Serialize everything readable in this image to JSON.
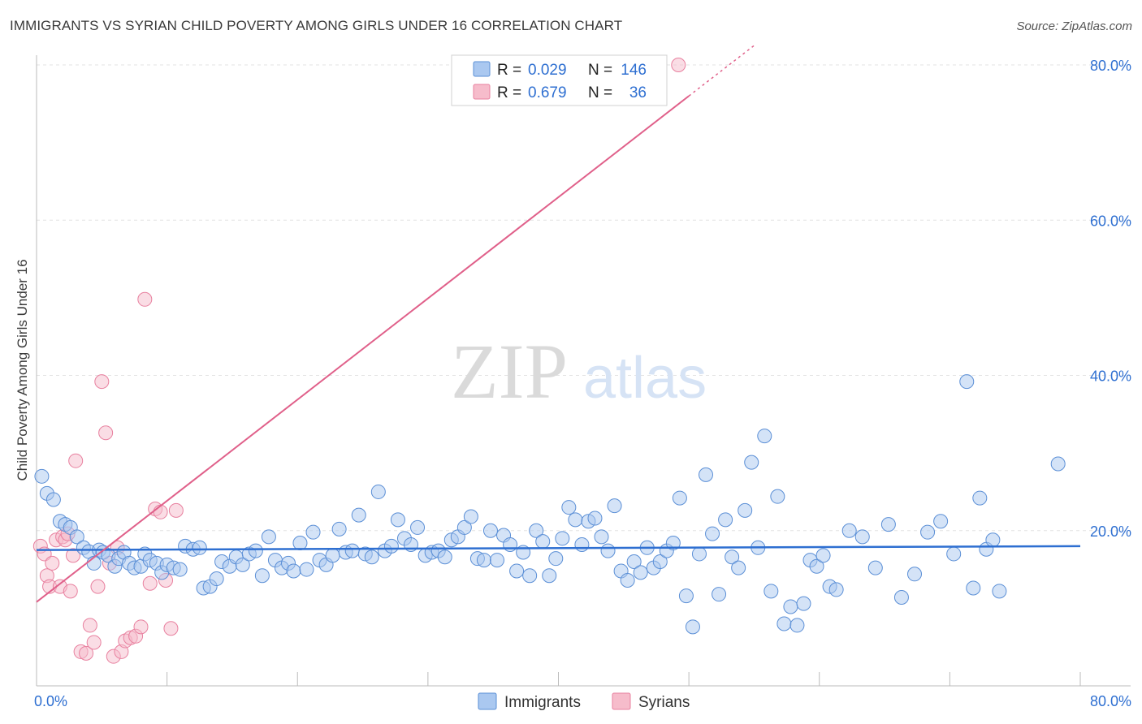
{
  "header": {
    "title": "IMMIGRANTS VS SYRIAN CHILD POVERTY AMONG GIRLS UNDER 16 CORRELATION CHART",
    "source": "Source: ZipAtlas.com"
  },
  "watermark": {
    "zip": "ZIP",
    "atlas": "atlas"
  },
  "legend_box": {
    "rows": [
      {
        "r_label": "R =",
        "r_value": "0.029",
        "n_label": "N =",
        "n_value": "146"
      },
      {
        "r_label": "R =",
        "r_value": "0.679",
        "n_label": "N =",
        "n_value": "36"
      }
    ]
  },
  "colors": {
    "immigrants_fill": "#aac8f0",
    "immigrants_stroke": "#5b8fd6",
    "immigrants_line": "#2e6fd1",
    "syrians_fill": "#f6bccb",
    "syrians_stroke": "#e8809f",
    "syrians_line": "#e0608a",
    "tick_label": "#2e6fd1",
    "grid": "#e3e3e3"
  },
  "chart_data": {
    "type": "scatter",
    "title": "IMMIGRANTS VS SYRIAN CHILD POVERTY AMONG GIRLS UNDER 16 CORRELATION CHART",
    "ylabel": "Child Poverty Among Girls Under 16",
    "xlabel": "",
    "xlim": [
      0,
      80
    ],
    "ylim": [
      0,
      80
    ],
    "x_tick_labels": [
      "0.0%",
      "80.0%"
    ],
    "y_tick_labels": [
      "20.0%",
      "40.0%",
      "60.0%",
      "80.0%"
    ],
    "y_ticks": [
      20,
      40,
      60,
      80
    ],
    "legend_position": "bottom-center",
    "grid": true,
    "series": [
      {
        "name": "Immigrants",
        "R": 0.029,
        "N": 146,
        "trend": {
          "x": [
            0,
            80
          ],
          "y": [
            17.5,
            18.0
          ]
        },
        "points": [
          [
            0.4,
            27.0
          ],
          [
            0.8,
            24.8
          ],
          [
            1.3,
            24.0
          ],
          [
            1.8,
            21.2
          ],
          [
            2.2,
            20.8
          ],
          [
            2.6,
            20.4
          ],
          [
            3.1,
            19.2
          ],
          [
            3.6,
            17.8
          ],
          [
            4.0,
            17.3
          ],
          [
            4.4,
            15.8
          ],
          [
            4.8,
            17.5
          ],
          [
            5.1,
            17.2
          ],
          [
            5.5,
            16.8
          ],
          [
            6.0,
            15.4
          ],
          [
            6.3,
            16.4
          ],
          [
            6.7,
            17.2
          ],
          [
            7.1,
            15.8
          ],
          [
            7.5,
            15.2
          ],
          [
            8.0,
            15.4
          ],
          [
            8.3,
            17.0
          ],
          [
            8.7,
            16.2
          ],
          [
            9.2,
            15.8
          ],
          [
            9.6,
            14.6
          ],
          [
            10.0,
            15.6
          ],
          [
            10.5,
            15.2
          ],
          [
            11.0,
            15.0
          ],
          [
            11.4,
            18.0
          ],
          [
            12.0,
            17.6
          ],
          [
            12.5,
            17.8
          ],
          [
            12.8,
            12.6
          ],
          [
            13.3,
            12.8
          ],
          [
            13.8,
            13.8
          ],
          [
            14.2,
            16.0
          ],
          [
            14.8,
            15.4
          ],
          [
            15.3,
            16.6
          ],
          [
            15.8,
            15.6
          ],
          [
            16.3,
            17.0
          ],
          [
            16.8,
            17.4
          ],
          [
            17.3,
            14.2
          ],
          [
            17.8,
            19.2
          ],
          [
            18.3,
            16.2
          ],
          [
            18.8,
            15.2
          ],
          [
            19.3,
            15.8
          ],
          [
            19.7,
            14.8
          ],
          [
            20.2,
            18.4
          ],
          [
            20.7,
            15.0
          ],
          [
            21.2,
            19.8
          ],
          [
            21.7,
            16.2
          ],
          [
            22.2,
            15.6
          ],
          [
            22.7,
            16.8
          ],
          [
            23.2,
            20.2
          ],
          [
            23.7,
            17.2
          ],
          [
            24.2,
            17.4
          ],
          [
            24.7,
            22.0
          ],
          [
            25.2,
            17.0
          ],
          [
            25.7,
            16.6
          ],
          [
            26.2,
            25.0
          ],
          [
            26.7,
            17.4
          ],
          [
            27.2,
            18.0
          ],
          [
            27.7,
            21.4
          ],
          [
            28.2,
            19.0
          ],
          [
            28.7,
            18.2
          ],
          [
            29.2,
            20.4
          ],
          [
            29.8,
            16.8
          ],
          [
            30.3,
            17.2
          ],
          [
            30.8,
            17.4
          ],
          [
            31.3,
            16.6
          ],
          [
            31.8,
            18.8
          ],
          [
            32.3,
            19.2
          ],
          [
            32.8,
            20.4
          ],
          [
            33.3,
            21.8
          ],
          [
            33.8,
            16.4
          ],
          [
            34.3,
            16.2
          ],
          [
            34.8,
            20.0
          ],
          [
            35.3,
            16.2
          ],
          [
            35.8,
            19.4
          ],
          [
            36.3,
            18.2
          ],
          [
            36.8,
            14.8
          ],
          [
            37.3,
            17.2
          ],
          [
            37.8,
            14.2
          ],
          [
            38.3,
            20.0
          ],
          [
            38.8,
            18.6
          ],
          [
            39.3,
            14.2
          ],
          [
            39.8,
            16.4
          ],
          [
            40.3,
            19.0
          ],
          [
            40.8,
            23.0
          ],
          [
            41.3,
            21.4
          ],
          [
            41.8,
            18.2
          ],
          [
            42.3,
            21.2
          ],
          [
            42.8,
            21.6
          ],
          [
            43.3,
            19.2
          ],
          [
            43.8,
            17.4
          ],
          [
            44.3,
            23.2
          ],
          [
            44.8,
            14.8
          ],
          [
            45.3,
            13.6
          ],
          [
            45.8,
            16.0
          ],
          [
            46.3,
            14.6
          ],
          [
            46.8,
            17.8
          ],
          [
            47.3,
            15.2
          ],
          [
            47.8,
            16.0
          ],
          [
            48.3,
            17.4
          ],
          [
            48.8,
            18.4
          ],
          [
            49.3,
            24.2
          ],
          [
            49.8,
            11.6
          ],
          [
            50.3,
            7.6
          ],
          [
            50.8,
            17.0
          ],
          [
            51.3,
            27.2
          ],
          [
            51.8,
            19.6
          ],
          [
            52.3,
            11.8
          ],
          [
            52.8,
            21.4
          ],
          [
            53.3,
            16.6
          ],
          [
            53.8,
            15.2
          ],
          [
            54.3,
            22.6
          ],
          [
            54.8,
            28.8
          ],
          [
            55.3,
            17.8
          ],
          [
            55.8,
            32.2
          ],
          [
            56.3,
            12.2
          ],
          [
            56.8,
            24.4
          ],
          [
            57.3,
            8.0
          ],
          [
            57.8,
            10.2
          ],
          [
            58.3,
            7.8
          ],
          [
            58.8,
            10.6
          ],
          [
            59.3,
            16.2
          ],
          [
            59.8,
            15.4
          ],
          [
            60.3,
            16.8
          ],
          [
            60.8,
            12.8
          ],
          [
            61.3,
            12.4
          ],
          [
            62.3,
            20.0
          ],
          [
            63.3,
            19.2
          ],
          [
            64.3,
            15.2
          ],
          [
            65.3,
            20.8
          ],
          [
            66.3,
            11.4
          ],
          [
            67.3,
            14.4
          ],
          [
            68.3,
            19.8
          ],
          [
            69.3,
            21.2
          ],
          [
            70.3,
            17.0
          ],
          [
            71.3,
            39.2
          ],
          [
            71.8,
            12.6
          ],
          [
            72.3,
            24.2
          ],
          [
            72.8,
            17.6
          ],
          [
            73.3,
            18.8
          ],
          [
            73.8,
            12.2
          ],
          [
            78.3,
            28.6
          ]
        ]
      },
      {
        "name": "Syrians",
        "R": 0.679,
        "N": 36,
        "trend": {
          "x": [
            0,
            50
          ],
          "y": [
            10.8,
            76.0
          ]
        },
        "trend_dashed": {
          "x": [
            50,
            55
          ],
          "y": [
            76.0,
            82.5
          ]
        },
        "points": [
          [
            0.3,
            18.0
          ],
          [
            0.6,
            17.0
          ],
          [
            0.8,
            14.2
          ],
          [
            1.0,
            12.8
          ],
          [
            1.2,
            15.8
          ],
          [
            1.5,
            18.8
          ],
          [
            1.8,
            12.8
          ],
          [
            2.0,
            19.2
          ],
          [
            2.2,
            18.8
          ],
          [
            2.4,
            19.6
          ],
          [
            2.6,
            12.2
          ],
          [
            2.8,
            16.8
          ],
          [
            3.0,
            29.0
          ],
          [
            3.4,
            4.4
          ],
          [
            3.8,
            4.2
          ],
          [
            4.1,
            7.8
          ],
          [
            4.4,
            5.6
          ],
          [
            4.7,
            12.8
          ],
          [
            5.0,
            39.2
          ],
          [
            5.3,
            32.6
          ],
          [
            5.6,
            15.8
          ],
          [
            5.9,
            3.8
          ],
          [
            6.2,
            17.8
          ],
          [
            6.5,
            4.4
          ],
          [
            6.8,
            5.8
          ],
          [
            7.2,
            6.2
          ],
          [
            7.6,
            6.4
          ],
          [
            8.0,
            7.6
          ],
          [
            8.3,
            49.8
          ],
          [
            8.7,
            13.2
          ],
          [
            9.1,
            22.8
          ],
          [
            9.5,
            22.4
          ],
          [
            9.9,
            13.6
          ],
          [
            10.3,
            7.4
          ],
          [
            10.7,
            22.6
          ],
          [
            49.2,
            80.0
          ]
        ]
      }
    ]
  }
}
